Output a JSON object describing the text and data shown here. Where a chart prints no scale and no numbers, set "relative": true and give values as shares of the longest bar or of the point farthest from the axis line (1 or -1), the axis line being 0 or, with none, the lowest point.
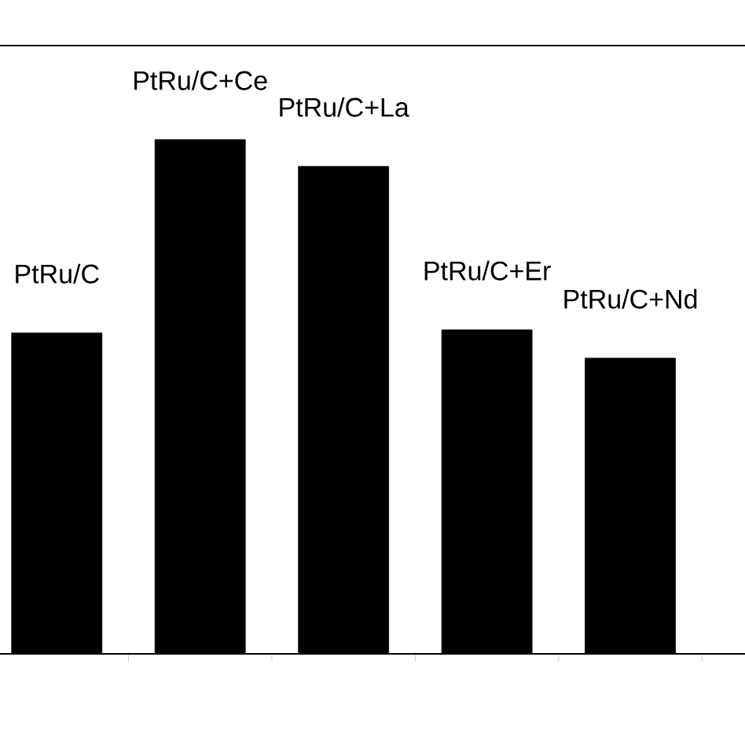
{
  "chart_data": {
    "type": "bar",
    "relative": true,
    "color": "#000000",
    "categories": [
      "PtRu/C",
      "PtRu/C+Ce",
      "PtRu/C+La",
      "PtRu/C+Er",
      "PtRu/C+Nd"
    ],
    "values": [
      0.624,
      1,
      0.948,
      0.63,
      0.575
    ]
  }
}
